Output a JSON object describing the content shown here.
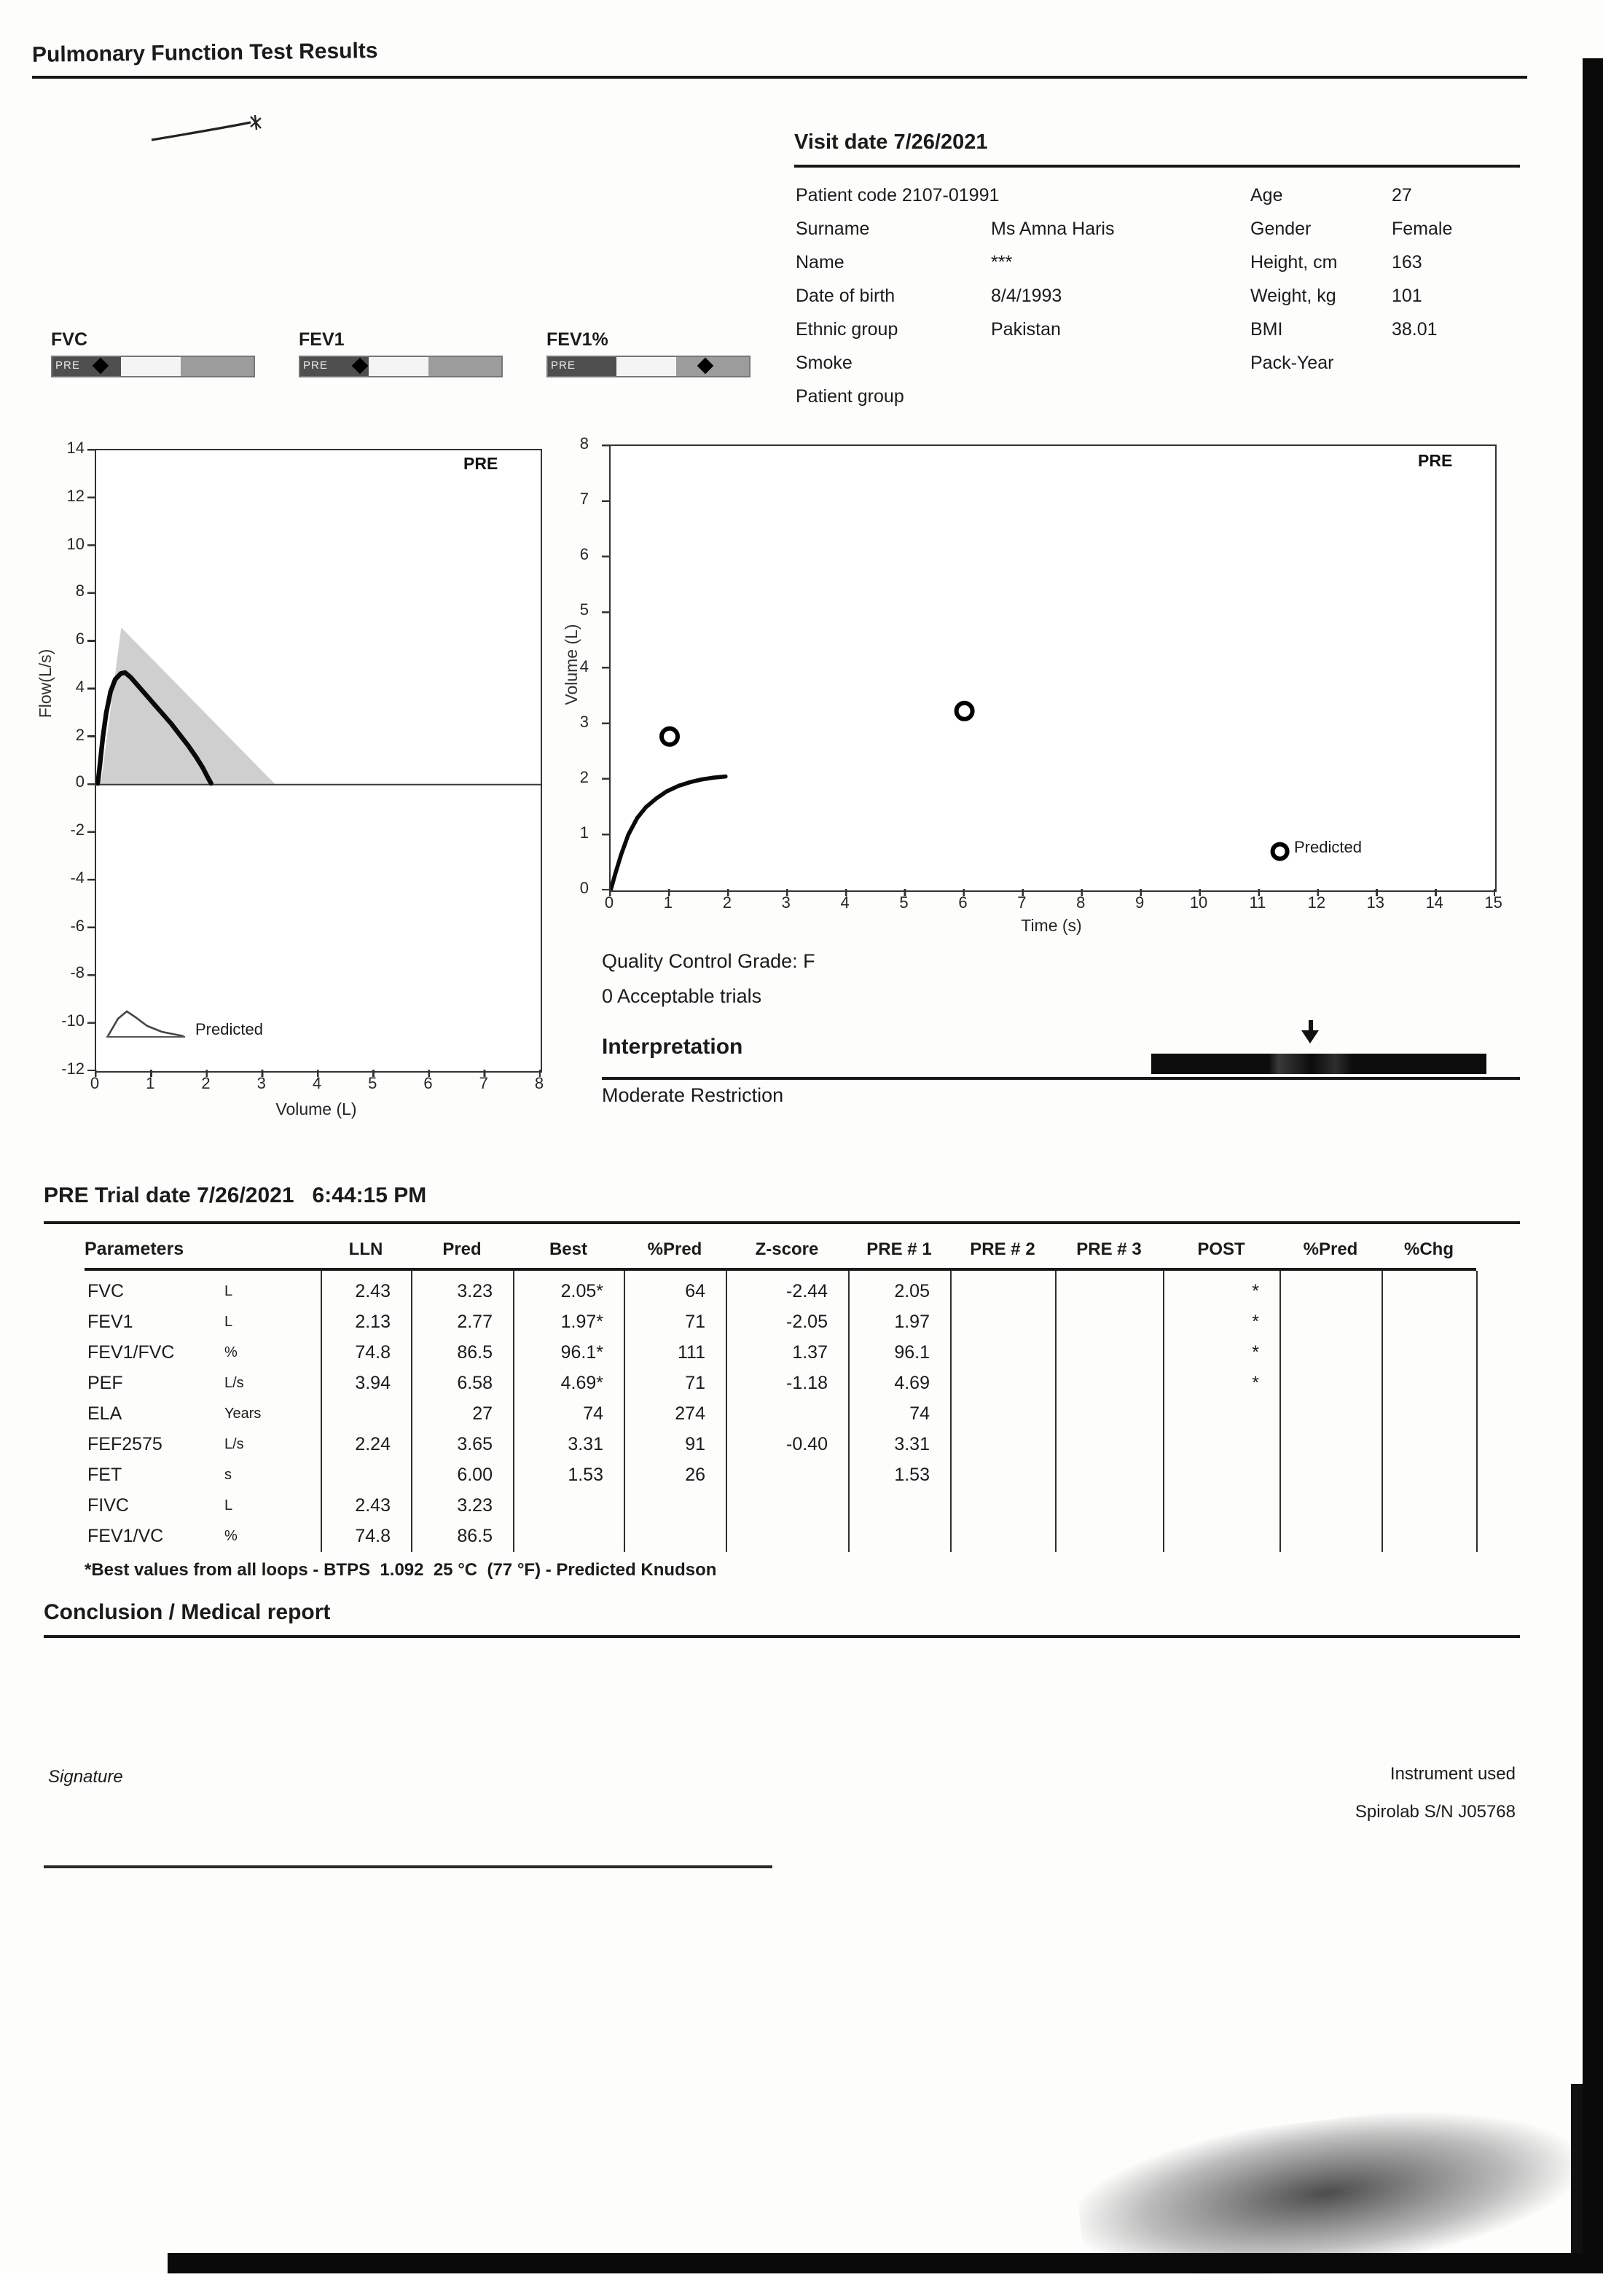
{
  "header": {
    "title": "Pulmonary Function Test Results"
  },
  "visit": {
    "title": "Visit date 7/26/2021",
    "patient_code": "Patient code 2107-01991",
    "fields_left": [
      {
        "label": "Surname",
        "value": "Ms Amna Haris"
      },
      {
        "label": "Name",
        "value": "***"
      },
      {
        "label": "Date of birth",
        "value": "8/4/1993"
      },
      {
        "label": "Ethnic group",
        "value": "Pakistan"
      },
      {
        "label": "Smoke",
        "value": ""
      },
      {
        "label": "Patient group",
        "value": ""
      }
    ],
    "fields_right": [
      {
        "label": "Age",
        "value": "27"
      },
      {
        "label": "Gender",
        "value": "Female"
      },
      {
        "label": "Height, cm",
        "value": "163"
      },
      {
        "label": "Weight, kg",
        "value": "101"
      },
      {
        "label": "BMI",
        "value": "38.01"
      },
      {
        "label": "Pack-Year",
        "value": ""
      }
    ]
  },
  "gauges": [
    {
      "label": "FVC",
      "pre": "PRE",
      "marker_pct": 24
    },
    {
      "label": "FEV1",
      "pre": "PRE",
      "marker_pct": 30
    },
    {
      "label": "FEV1%",
      "pre": "PRE",
      "marker_pct": 78
    }
  ],
  "chart_data": [
    {
      "type": "line",
      "name": "flow-volume-loop",
      "title": "PRE",
      "xlabel": "Volume (L)",
      "ylabel": "Flow(L/s)",
      "x_range": [
        0,
        8
      ],
      "y_range": [
        -12,
        14
      ],
      "x_ticks": [
        "0",
        "1",
        "2",
        "3",
        "4",
        "5",
        "6",
        "7",
        "8"
      ],
      "y_ticks": [
        "14",
        "12",
        "10",
        "8",
        "6",
        "4",
        "2",
        "0",
        "-2",
        "-4",
        "-6",
        "-8",
        "-10",
        "-12"
      ],
      "legend": "Predicted",
      "predicted_area": {
        "points": [
          [
            0.08,
            0.0
          ],
          [
            0.45,
            6.58
          ],
          [
            3.23,
            0.0
          ]
        ]
      },
      "measured_curve": {
        "points": [
          [
            0.03,
            0.05
          ],
          [
            0.07,
            0.9
          ],
          [
            0.12,
            2.0
          ],
          [
            0.18,
            3.0
          ],
          [
            0.26,
            3.9
          ],
          [
            0.34,
            4.4
          ],
          [
            0.44,
            4.65
          ],
          [
            0.52,
            4.69
          ],
          [
            0.62,
            4.5
          ],
          [
            0.75,
            4.15
          ],
          [
            0.9,
            3.75
          ],
          [
            1.05,
            3.35
          ],
          [
            1.2,
            2.95
          ],
          [
            1.35,
            2.55
          ],
          [
            1.5,
            2.1
          ],
          [
            1.65,
            1.65
          ],
          [
            1.8,
            1.15
          ],
          [
            1.92,
            0.7
          ],
          [
            2.01,
            0.3
          ],
          [
            2.07,
            0.05
          ]
        ]
      }
    },
    {
      "type": "line",
      "name": "volume-time",
      "title": "PRE",
      "xlabel": "Time (s)",
      "ylabel": "Volume (L)",
      "x_range": [
        0,
        15
      ],
      "y_range": [
        0,
        8
      ],
      "x_ticks": [
        "0",
        "1",
        "2",
        "3",
        "4",
        "5",
        "6",
        "7",
        "8",
        "9",
        "10",
        "11",
        "12",
        "13",
        "14",
        "15"
      ],
      "y_ticks": [
        "8",
        "7",
        "6",
        "5",
        "4",
        "3",
        "2",
        "1",
        "0"
      ],
      "legend": "Predicted",
      "curve": {
        "points": [
          [
            0.0,
            0.0
          ],
          [
            0.08,
            0.3
          ],
          [
            0.18,
            0.65
          ],
          [
            0.3,
            1.0
          ],
          [
            0.45,
            1.3
          ],
          [
            0.6,
            1.5
          ],
          [
            0.78,
            1.66
          ],
          [
            0.95,
            1.78
          ],
          [
            1.15,
            1.88
          ],
          [
            1.35,
            1.95
          ],
          [
            1.55,
            2.0
          ],
          [
            1.75,
            2.03
          ],
          [
            1.95,
            2.05
          ]
        ]
      },
      "markers": [
        [
          1.0,
          2.77
        ],
        [
          6.0,
          3.23
        ]
      ],
      "legend_marker": [
        11.35,
        0.7
      ]
    }
  ],
  "quality": {
    "grade": "Quality Control Grade: F",
    "trials": "0 Acceptable trials",
    "interpretation_title": "Interpretation",
    "interpretation_text": "Moderate Restriction"
  },
  "trial": {
    "title": "PRE Trial date 7/26/2021   6:44:15 PM"
  },
  "table": {
    "headers": [
      "Parameters",
      "LLN",
      "Pred",
      "Best",
      "%Pred",
      "Z-score",
      "PRE # 1",
      "PRE # 2",
      "PRE # 3",
      "POST",
      "%Pred",
      "%Chg"
    ],
    "rows": [
      {
        "param": "FVC",
        "unit": "L",
        "lln": "2.43",
        "pred": "3.23",
        "best": "2.05*",
        "pctpred": "64",
        "zscore": "-2.44",
        "pre1": "2.05",
        "pre2": "",
        "pre3": "",
        "post": "*",
        "postpct": "",
        "pctchg": ""
      },
      {
        "param": "FEV1",
        "unit": "L",
        "lln": "2.13",
        "pred": "2.77",
        "best": "1.97*",
        "pctpred": "71",
        "zscore": "-2.05",
        "pre1": "1.97",
        "pre2": "",
        "pre3": "",
        "post": "*",
        "postpct": "",
        "pctchg": ""
      },
      {
        "param": "FEV1/FVC",
        "unit": "%",
        "lln": "74.8",
        "pred": "86.5",
        "best": "96.1*",
        "pctpred": "111",
        "zscore": "1.37",
        "pre1": "96.1",
        "pre2": "",
        "pre3": "",
        "post": "*",
        "postpct": "",
        "pctchg": ""
      },
      {
        "param": "PEF",
        "unit": "L/s",
        "lln": "3.94",
        "pred": "6.58",
        "best": "4.69*",
        "pctpred": "71",
        "zscore": "-1.18",
        "pre1": "4.69",
        "pre2": "",
        "pre3": "",
        "post": "*",
        "postpct": "",
        "pctchg": ""
      },
      {
        "param": "ELA",
        "unit": "Years",
        "lln": "",
        "pred": "27",
        "best": "74",
        "pctpred": "274",
        "zscore": "",
        "pre1": "74",
        "pre2": "",
        "pre3": "",
        "post": "",
        "postpct": "",
        "pctchg": ""
      },
      {
        "param": "FEF2575",
        "unit": "L/s",
        "lln": "2.24",
        "pred": "3.65",
        "best": "3.31",
        "pctpred": "91",
        "zscore": "-0.40",
        "pre1": "3.31",
        "pre2": "",
        "pre3": "",
        "post": "",
        "postpct": "",
        "pctchg": ""
      },
      {
        "param": "FET",
        "unit": "s",
        "lln": "",
        "pred": "6.00",
        "best": "1.53",
        "pctpred": "26",
        "zscore": "",
        "pre1": "1.53",
        "pre2": "",
        "pre3": "",
        "post": "",
        "postpct": "",
        "pctchg": ""
      },
      {
        "param": "FIVC",
        "unit": "L",
        "lln": "2.43",
        "pred": "3.23",
        "best": "",
        "pctpred": "",
        "zscore": "",
        "pre1": "",
        "pre2": "",
        "pre3": "",
        "post": "",
        "postpct": "",
        "pctchg": ""
      },
      {
        "param": "FEV1/VC",
        "unit": "%",
        "lln": "74.8",
        "pred": "86.5",
        "best": "",
        "pctpred": "",
        "zscore": "",
        "pre1": "",
        "pre2": "",
        "pre3": "",
        "post": "",
        "postpct": "",
        "pctchg": ""
      }
    ],
    "footnote": "*Best values from all loops - BTPS  1.092  25 °C  (77 °F) - Predicted Knudson"
  },
  "conclusion": {
    "title": "Conclusion / Medical report"
  },
  "footer": {
    "signature_label": "Signature",
    "instrument_label": "Instrument used",
    "instrument_value": "Spirolab S/N J05768"
  }
}
